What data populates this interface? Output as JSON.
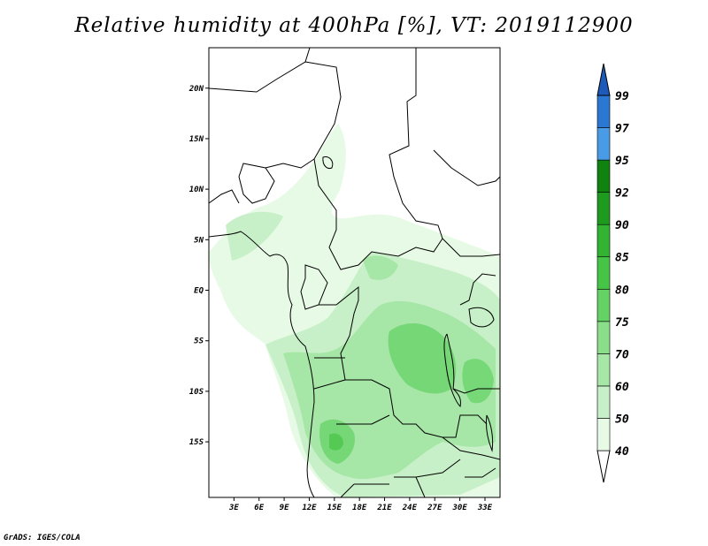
{
  "title": "Relative humidity at 400hPa [%], VT: 2019112900",
  "credit": "GrADS: IGES/COLA",
  "map": {
    "lon_range": [
      0,
      34.8
    ],
    "lat_range": [
      -20.5,
      24
    ],
    "lat_ticks": [
      {
        "value": 20,
        "label": "20N"
      },
      {
        "value": 15,
        "label": "15N"
      },
      {
        "value": 10,
        "label": "10N"
      },
      {
        "value": 5,
        "label": "5N"
      },
      {
        "value": 0,
        "label": "EQ"
      },
      {
        "value": -5,
        "label": "5S"
      },
      {
        "value": -10,
        "label": "10S"
      },
      {
        "value": -15,
        "label": "15S"
      }
    ],
    "lon_ticks": [
      {
        "value": 3,
        "label": "3E"
      },
      {
        "value": 6,
        "label": "6E"
      },
      {
        "value": 9,
        "label": "9E"
      },
      {
        "value": 12,
        "label": "12E"
      },
      {
        "value": 15,
        "label": "15E"
      },
      {
        "value": 18,
        "label": "18E"
      },
      {
        "value": 21,
        "label": "21E"
      },
      {
        "value": 24,
        "label": "24E"
      },
      {
        "value": 27,
        "label": "27E"
      },
      {
        "value": 30,
        "label": "30E"
      },
      {
        "value": 33,
        "label": "33E"
      }
    ]
  },
  "colorbar": {
    "levels": [
      "40",
      "50",
      "60",
      "70",
      "75",
      "80",
      "85",
      "90",
      "92",
      "95",
      "97",
      "99"
    ],
    "colors": [
      "#ffffff",
      "#e6fae6",
      "#c8f0c8",
      "#a6e6a6",
      "#8ade8a",
      "#64d264",
      "#46c446",
      "#32b432",
      "#1e9b1e",
      "#108210",
      "#4a9be6",
      "#2a78d2",
      "#1e5aba"
    ]
  }
}
